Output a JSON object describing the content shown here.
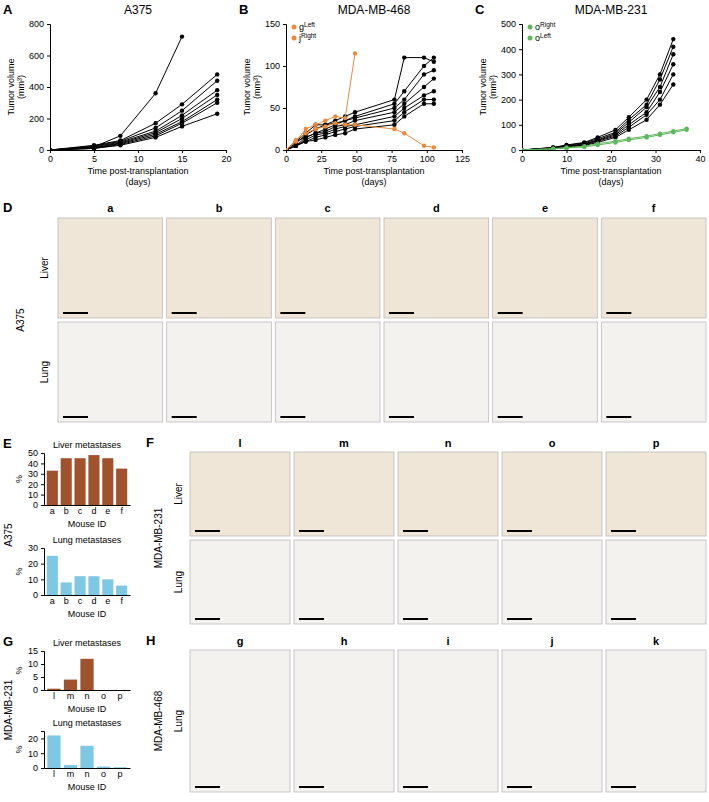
{
  "chart_data": [
    {
      "type": "line",
      "title": "A375",
      "annotations": [
        "A"
      ],
      "xlabel": [
        "Time post-transplantation",
        "(days)"
      ],
      "ylabel": [
        "Tumor volume",
        "(mm³)"
      ],
      "x": [
        0,
        5,
        8,
        12,
        15,
        19
      ],
      "xlim": [
        0,
        20
      ],
      "xticks": [
        0,
        5,
        10,
        15,
        20
      ],
      "ylim": [
        0,
        800
      ],
      "yticks": [
        0,
        200,
        400,
        600,
        800
      ],
      "marker": "circle",
      "series": [
        {
          "color": "#000000",
          "values": [
            0,
            20,
            90,
            360,
            720,
            null
          ]
        },
        {
          "color": "#000000",
          "values": [
            0,
            30,
            60,
            170,
            290,
            480
          ]
        },
        {
          "color": "#000000",
          "values": [
            0,
            25,
            55,
            140,
            250,
            440
          ]
        },
        {
          "color": "#000000",
          "values": [
            0,
            20,
            50,
            120,
            220,
            380
          ]
        },
        {
          "color": "#000000",
          "values": [
            0,
            15,
            45,
            110,
            200,
            350
          ]
        },
        {
          "color": "#000000",
          "values": [
            0,
            15,
            40,
            100,
            180,
            320
          ]
        },
        {
          "color": "#000000",
          "values": [
            0,
            10,
            35,
            90,
            170,
            300
          ]
        },
        {
          "color": "#000000",
          "values": [
            0,
            10,
            30,
            80,
            150,
            230
          ]
        }
      ]
    },
    {
      "type": "line",
      "title": "MDA-MB-468",
      "annotations": [
        "B"
      ],
      "xlabel": [
        "Time post-transplantation",
        "(days)"
      ],
      "ylabel": [
        "Tumor volume",
        "(mm³)"
      ],
      "x": [
        0,
        7,
        14,
        21,
        28,
        35,
        42,
        49,
        77,
        84,
        98,
        105
      ],
      "xlim": [
        0,
        125
      ],
      "xticks": [
        0,
        25,
        50,
        75,
        100,
        125
      ],
      "ylim": [
        0,
        150
      ],
      "yticks": [
        0,
        50,
        100,
        150
      ],
      "marker": "circle",
      "legend": "upper left",
      "series": [
        {
          "color": "#000000",
          "values": [
            0,
            10,
            20,
            30,
            30,
            35,
            40,
            45,
            60,
            110,
            110,
            105
          ]
        },
        {
          "color": "#000000",
          "values": [
            0,
            8,
            18,
            25,
            30,
            32,
            35,
            40,
            55,
            70,
            100,
            110
          ]
        },
        {
          "color": "#000000",
          "values": [
            0,
            10,
            15,
            20,
            25,
            30,
            35,
            38,
            50,
            60,
            90,
            95
          ]
        },
        {
          "color": "#000000",
          "values": [
            0,
            5,
            15,
            20,
            22,
            28,
            30,
            35,
            45,
            55,
            75,
            85
          ]
        },
        {
          "color": "#000000",
          "values": [
            0,
            5,
            12,
            18,
            20,
            25,
            28,
            30,
            40,
            50,
            65,
            70
          ]
        },
        {
          "color": "#000000",
          "values": [
            0,
            5,
            10,
            15,
            18,
            22,
            25,
            28,
            35,
            45,
            60,
            60
          ]
        },
        {
          "color": "#000000",
          "values": [
            0,
            5,
            10,
            12,
            15,
            18,
            20,
            25,
            30,
            40,
            55,
            55
          ]
        },
        {
          "name": "gLeft",
          "color": "#ea8a3c",
          "values": [
            0,
            10,
            25,
            30,
            35,
            40,
            38,
            115,
            null,
            null,
            null,
            null
          ]
        },
        {
          "name": "jRight",
          "color": "#ea8a3c",
          "values": [
            0,
            12,
            20,
            25,
            28,
            32,
            30,
            30,
            25,
            20,
            5,
            3
          ]
        }
      ]
    },
    {
      "type": "line",
      "title": "MDA-MB-231",
      "annotations": [
        "C"
      ],
      "xlabel": [
        "Time post-transplantation",
        "(days)"
      ],
      "ylabel": [
        "Tumor volume",
        "(mm³)"
      ],
      "x": [
        0,
        7,
        10,
        14,
        17,
        21,
        24,
        28,
        31,
        34,
        37
      ],
      "xlim": [
        0,
        40
      ],
      "xticks": [
        0,
        10,
        20,
        30,
        40
      ],
      "ylim": [
        0,
        500
      ],
      "yticks": [
        0,
        100,
        200,
        300,
        400,
        500
      ],
      "marker": "circle",
      "legend": "upper left",
      "series": [
        {
          "color": "#000000",
          "values": [
            0,
            10,
            20,
            30,
            50,
            80,
            130,
            200,
            300,
            440,
            null
          ]
        },
        {
          "color": "#000000",
          "values": [
            0,
            10,
            18,
            28,
            45,
            70,
            120,
            180,
            280,
            410,
            null
          ]
        },
        {
          "color": "#000000",
          "values": [
            0,
            8,
            15,
            25,
            40,
            65,
            110,
            170,
            250,
            380,
            null
          ]
        },
        {
          "color": "#000000",
          "values": [
            0,
            8,
            15,
            22,
            38,
            60,
            100,
            150,
            230,
            340,
            null
          ]
        },
        {
          "color": "#000000",
          "values": [
            0,
            5,
            12,
            20,
            35,
            55,
            90,
            140,
            200,
            300,
            null
          ]
        },
        {
          "color": "#000000",
          "values": [
            0,
            5,
            10,
            18,
            30,
            50,
            80,
            120,
            180,
            260,
            null
          ]
        },
        {
          "name": "oRight",
          "color": "#5cb85c",
          "values": [
            0,
            5,
            10,
            15,
            25,
            35,
            45,
            55,
            65,
            75,
            85
          ]
        },
        {
          "name": "oLeft",
          "color": "#5cb85c",
          "values": [
            0,
            5,
            8,
            12,
            20,
            30,
            40,
            50,
            60,
            70,
            80
          ]
        }
      ]
    },
    {
      "type": "bar",
      "title": "Liver metastases",
      "annotations": [
        "E",
        "A375"
      ],
      "xlabel": "Mouse ID",
      "ylabel": "%",
      "categories": [
        "a",
        "b",
        "c",
        "d",
        "e",
        "f"
      ],
      "values": [
        33,
        45,
        45,
        48,
        45,
        35
      ],
      "color": "#a0522d",
      "ylim": [
        0,
        50
      ],
      "yticks": [
        0,
        10,
        20,
        30,
        40,
        50
      ]
    },
    {
      "type": "bar",
      "title": "Lung metastases",
      "xlabel": "Mouse ID",
      "ylabel": "%",
      "categories": [
        "a",
        "b",
        "c",
        "d",
        "e",
        "f"
      ],
      "values": [
        25,
        8,
        12,
        12,
        10,
        6
      ],
      "color": "#7ec8e3",
      "ylim": [
        0,
        30
      ],
      "yticks": [
        0,
        10,
        20,
        30
      ]
    },
    {
      "type": "bar",
      "title": "Liver metastases",
      "annotations": [
        "G",
        "MDA-MB-231"
      ],
      "xlabel": "Mouse ID",
      "ylabel": "%",
      "categories": [
        "l",
        "m",
        "n",
        "o",
        "p"
      ],
      "values": [
        0.5,
        4,
        12,
        0,
        0
      ],
      "color": "#a0522d",
      "ylim": [
        0,
        15
      ],
      "yticks": [
        0,
        5,
        10,
        15
      ]
    },
    {
      "type": "bar",
      "title": "Lung metastases",
      "xlabel": "Mouse ID",
      "ylabel": "%",
      "categories": [
        "l",
        "m",
        "n",
        "o",
        "p"
      ],
      "values": [
        22,
        2,
        15,
        1,
        0.5
      ],
      "color": "#7ec8e3",
      "ylim": [
        0,
        25
      ],
      "yticks": [
        0,
        10,
        20
      ]
    }
  ],
  "image_panels": [
    {
      "label": "D",
      "group": "A375",
      "rows": [
        "Liver",
        "Lung"
      ],
      "columns": [
        "a",
        "b",
        "c",
        "d",
        "e",
        "f"
      ]
    },
    {
      "label": "F",
      "group": "MDA-MB-231",
      "rows": [
        "Liver",
        "Lung"
      ],
      "columns": [
        "l",
        "m",
        "n",
        "o",
        "p"
      ]
    },
    {
      "label": "H",
      "group": "MDA-MB-468",
      "rows": [
        "Lung"
      ],
      "columns": [
        "g",
        "h",
        "i",
        "j",
        "k"
      ]
    }
  ]
}
